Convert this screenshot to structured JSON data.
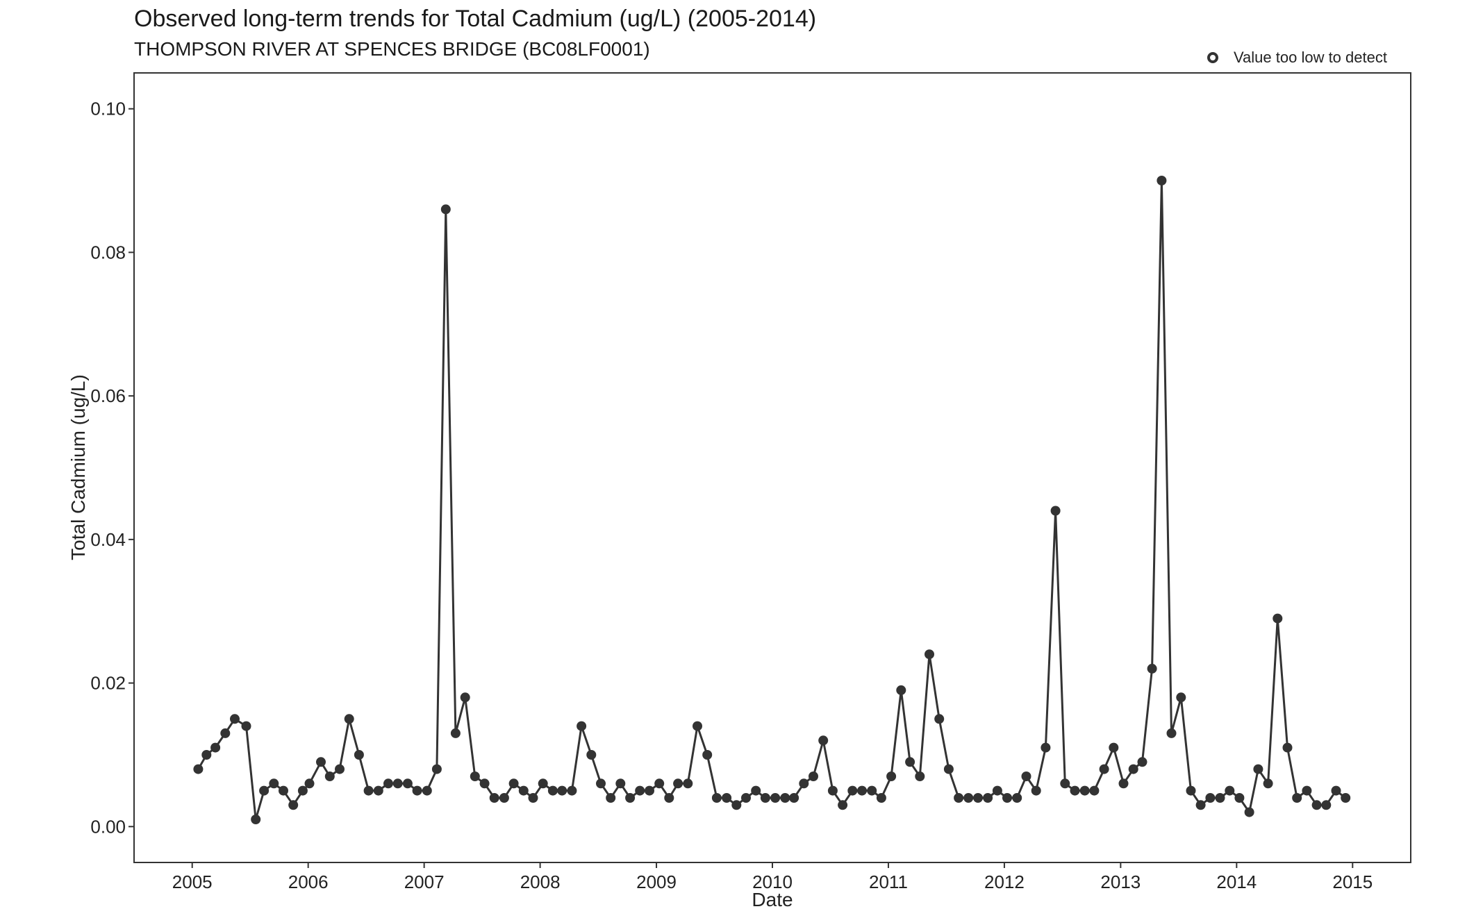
{
  "chart_data": {
    "type": "line",
    "title": "Observed long-term trends for Total Cadmium (ug/L) (2005-2014)",
    "subtitle": "THOMPSON RIVER AT SPENCES BRIDGE (BC08LF0001)",
    "xlabel": "Date",
    "ylabel": "Total Cadmium (ug/L)",
    "xlim": [
      "2005-01-01",
      "2015-01-01"
    ],
    "ylim": [
      -0.005,
      0.105
    ],
    "x_ticks": [
      "2005",
      "2006",
      "2007",
      "2008",
      "2009",
      "2010",
      "2011",
      "2012",
      "2013",
      "2014",
      "2015"
    ],
    "y_ticks": [
      "0.00",
      "0.02",
      "0.04",
      "0.06",
      "0.08",
      "0.10"
    ],
    "y_tick_values": [
      0,
      0.02,
      0.04,
      0.06,
      0.08,
      0.1
    ],
    "grid": false,
    "legend": {
      "position": "top-right",
      "entries": [
        {
          "label": "Value too low to detect",
          "marker": "open-circle"
        }
      ]
    },
    "colors": {
      "series": "#333333",
      "axis": "#333333"
    },
    "series": [
      {
        "x": [
          "2005-01-20",
          "2005-02-15",
          "2005-03-15",
          "2005-04-15",
          "2005-05-15",
          "2005-06-20",
          "2005-07-20",
          "2005-08-15",
          "2005-09-15",
          "2005-10-15",
          "2005-11-15",
          "2005-12-15",
          "2006-01-05",
          "2006-02-10",
          "2006-03-10",
          "2006-04-10",
          "2006-05-10",
          "2006-06-10",
          "2006-07-10",
          "2006-08-10",
          "2006-09-10",
          "2006-10-10",
          "2006-11-10",
          "2006-12-10",
          "2007-01-10",
          "2007-02-10",
          "2007-03-10",
          "2007-04-10",
          "2007-05-10",
          "2007-06-10",
          "2007-07-10",
          "2007-08-10",
          "2007-09-10",
          "2007-10-10",
          "2007-11-10",
          "2007-12-10",
          "2008-01-10",
          "2008-02-10",
          "2008-03-10",
          "2008-04-10",
          "2008-05-10",
          "2008-06-10",
          "2008-07-10",
          "2008-08-10",
          "2008-09-10",
          "2008-10-10",
          "2008-11-10",
          "2008-12-10",
          "2009-01-10",
          "2009-02-10",
          "2009-03-10",
          "2009-04-10",
          "2009-05-10",
          "2009-06-10",
          "2009-07-10",
          "2009-08-10",
          "2009-09-10",
          "2009-10-10",
          "2009-11-10",
          "2009-12-10",
          "2010-01-10",
          "2010-02-10",
          "2010-03-10",
          "2010-04-10",
          "2010-05-10",
          "2010-06-10",
          "2010-07-10",
          "2010-08-10",
          "2010-09-10",
          "2010-10-10",
          "2010-11-10",
          "2010-12-10",
          "2011-01-10",
          "2011-02-10",
          "2011-03-10",
          "2011-04-10",
          "2011-05-10",
          "2011-06-10",
          "2011-07-10",
          "2011-08-10",
          "2011-09-10",
          "2011-10-10",
          "2011-11-10",
          "2011-12-10",
          "2012-01-10",
          "2012-02-10",
          "2012-03-10",
          "2012-04-10",
          "2012-05-10",
          "2012-06-10",
          "2012-07-10",
          "2012-08-10",
          "2012-09-10",
          "2012-10-10",
          "2012-11-10",
          "2012-12-10",
          "2013-01-10",
          "2013-02-10",
          "2013-03-10",
          "2013-04-10",
          "2013-05-10",
          "2013-06-10",
          "2013-07-10",
          "2013-08-10",
          "2013-09-10",
          "2013-10-10",
          "2013-11-10",
          "2013-12-10",
          "2014-01-10",
          "2014-02-10",
          "2014-03-10",
          "2014-04-10",
          "2014-05-10",
          "2014-06-10",
          "2014-07-10",
          "2014-08-10",
          "2014-09-10",
          "2014-10-10",
          "2014-11-10",
          "2014-12-10"
        ],
        "y": [
          0.008,
          0.01,
          0.011,
          0.013,
          0.015,
          0.014,
          0.001,
          0.005,
          0.006,
          0.005,
          0.003,
          0.005,
          0.006,
          0.009,
          0.007,
          0.008,
          0.015,
          0.01,
          0.005,
          0.005,
          0.006,
          0.006,
          0.006,
          0.005,
          0.005,
          0.008,
          0.086,
          0.013,
          0.018,
          0.007,
          0.006,
          0.004,
          0.004,
          0.006,
          0.005,
          0.004,
          0.006,
          0.005,
          0.005,
          0.005,
          0.014,
          0.01,
          0.006,
          0.004,
          0.006,
          0.004,
          0.005,
          0.005,
          0.006,
          0.004,
          0.006,
          0.006,
          0.014,
          0.01,
          0.004,
          0.004,
          0.003,
          0.004,
          0.005,
          0.004,
          0.004,
          0.004,
          0.004,
          0.006,
          0.007,
          0.012,
          0.005,
          0.003,
          0.005,
          0.005,
          0.005,
          0.004,
          0.007,
          0.019,
          0.009,
          0.007,
          0.024,
          0.015,
          0.008,
          0.004,
          0.004,
          0.004,
          0.004,
          0.005,
          0.004,
          0.004,
          0.007,
          0.005,
          0.011,
          0.044,
          0.006,
          0.005,
          0.005,
          0.005,
          0.008,
          0.011,
          0.006,
          0.008,
          0.009,
          0.022,
          0.09,
          0.013,
          0.018,
          0.005,
          0.003,
          0.004,
          0.004,
          0.005,
          0.004,
          0.002,
          0.008,
          0.006,
          0.029,
          0.011,
          0.004,
          0.005,
          0.003,
          0.003,
          0.005,
          0.004
        ]
      }
    ]
  }
}
